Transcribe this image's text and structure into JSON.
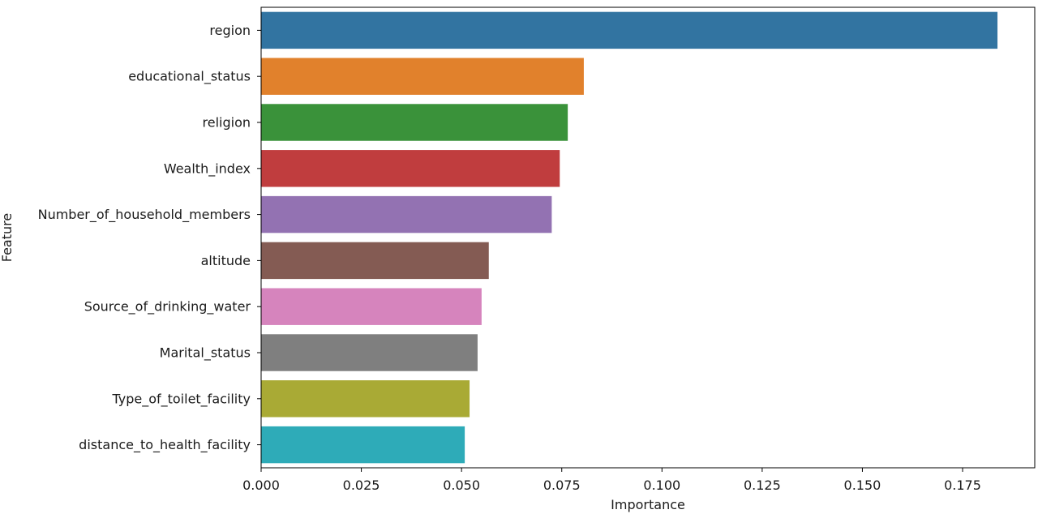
{
  "chart_data": {
    "type": "bar",
    "orientation": "horizontal",
    "title": "",
    "xlabel": "Importance",
    "ylabel": "Feature",
    "xlim": [
      0,
      0.193
    ],
    "xticks": [
      0.0,
      0.025,
      0.05,
      0.075,
      0.1,
      0.125,
      0.15,
      0.175
    ],
    "xtick_labels": [
      "0.000",
      "0.025",
      "0.050",
      "0.075",
      "0.100",
      "0.125",
      "0.150",
      "0.175"
    ],
    "grid": false,
    "legend": "none",
    "categories": [
      "region",
      "educational_status",
      "religion",
      "Wealth_index",
      "Number_of_household_members",
      "altitude",
      "Source_of_drinking_water",
      "Marital_status",
      "Type_of_toilet_facility",
      "distance_to_health_facility"
    ],
    "values": [
      0.1837,
      0.0805,
      0.0765,
      0.0745,
      0.0725,
      0.0568,
      0.055,
      0.054,
      0.052,
      0.0508
    ],
    "colors": [
      "#3274a1",
      "#e1812c",
      "#3a923a",
      "#c03d3e",
      "#9372b2",
      "#845b53",
      "#d684bd",
      "#7f7f7f",
      "#a9aa35",
      "#2eabb8"
    ]
  }
}
